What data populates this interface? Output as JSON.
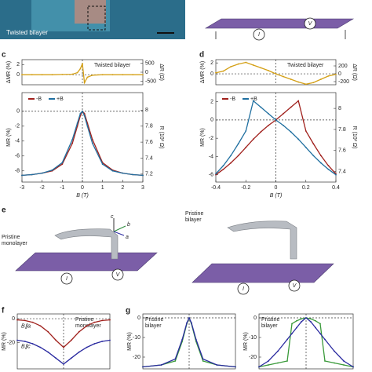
{
  "panel_labels": {
    "c": "c",
    "d": "d",
    "e": "e",
    "f": "f",
    "g": "g"
  },
  "schematics": {
    "image_label": "Twisted bilayer",
    "current": "I",
    "voltage": "V",
    "axis_a": "a",
    "axis_b": "b",
    "axis_c": "c",
    "monolayer": "Pristine\nmonolayer",
    "bilayer": "Pristine\nbilayer"
  },
  "chart_data": [
    {
      "type": "line",
      "title": "Twisted bilayer",
      "ylabel": "ΔMR (%)",
      "y2label": "ΔR (Ω)",
      "x": [
        -3,
        -2.5,
        -2,
        -1.5,
        -1,
        -0.5,
        -0.25,
        -0.1,
        0,
        0.1,
        0.25,
        0.5,
        1,
        1.5,
        2,
        2.5,
        3
      ],
      "xlim": [
        -3,
        3
      ],
      "ylim": [
        -2,
        3
      ],
      "yticks": [
        0,
        2
      ],
      "y2lim": [
        -700,
        700
      ],
      "y2ticks": [
        500,
        0,
        -500
      ],
      "series": [
        {
          "name": "ΔMR",
          "color": "#d4a017",
          "values": [
            0,
            0,
            0,
            0,
            0.05,
            0.1,
            0.4,
            1.2,
            2.2,
            -1.6,
            -0.5,
            -0.1,
            0,
            0,
            0,
            0,
            0
          ]
        }
      ]
    },
    {
      "type": "line",
      "xlabel": "B (T)",
      "ylabel": "MR (%)",
      "y2label": "R (10² Ω)",
      "x": [
        -3,
        -2.5,
        -2,
        -1.5,
        -1,
        -0.5,
        -0.25,
        -0.1,
        0,
        0.1,
        0.25,
        0.5,
        1,
        1.5,
        2,
        2.5,
        3
      ],
      "xlim": [
        -3,
        3
      ],
      "xticks": [
        -3,
        -2,
        -1,
        0,
        1,
        2,
        3
      ],
      "ylim": [
        -9.5,
        2.5
      ],
      "yticks": [
        0,
        -2,
        -4,
        -6,
        -8
      ],
      "y2lim": [
        7.1,
        8.22
      ],
      "y2ticks": [
        8.0,
        7.8,
        7.6,
        7.4,
        7.2
      ],
      "legend": "top-left",
      "series": [
        {
          "name": "-B",
          "color": "#a0201c",
          "values": [
            -8.6,
            -8.5,
            -8.3,
            -8.0,
            -7.1,
            -4.3,
            -2.0,
            -0.6,
            0,
            -0.3,
            -1.6,
            -3.8,
            -6.9,
            -7.9,
            -8.3,
            -8.5,
            -8.6
          ]
        },
        {
          "name": "+B",
          "color": "#1f6fa0",
          "values": [
            -8.6,
            -8.5,
            -8.3,
            -7.9,
            -6.9,
            -3.8,
            -1.6,
            -0.3,
            0,
            -0.6,
            -2.0,
            -4.3,
            -7.1,
            -8.0,
            -8.3,
            -8.5,
            -8.6
          ]
        }
      ]
    },
    {
      "type": "line",
      "title": "Twisted bilayer",
      "ylabel": "ΔMR (%)",
      "y2label": "ΔR (Ω)",
      "x": [
        -0.4,
        -0.35,
        -0.3,
        -0.25,
        -0.2,
        -0.15,
        -0.1,
        -0.05,
        0,
        0.05,
        0.1,
        0.15,
        0.2,
        0.25,
        0.3,
        0.35,
        0.4
      ],
      "xlim": [
        -0.4,
        0.4
      ],
      "ylim": [
        -2,
        2.6
      ],
      "yticks": [
        0,
        2
      ],
      "y2lim": [
        -280,
        360
      ],
      "y2ticks": [
        200,
        0,
        -200
      ],
      "series": [
        {
          "name": "ΔMR",
          "color": "#d4a017",
          "values": [
            0.2,
            0.5,
            1.3,
            1.8,
            2.1,
            1.6,
            1.1,
            0.6,
            0,
            -0.5,
            -1.0,
            -1.5,
            -1.9,
            -1.6,
            -1.0,
            -0.4,
            -0.1
          ]
        }
      ]
    },
    {
      "type": "line",
      "xlabel": "B (T)",
      "ylabel": "MR (%)",
      "y2label": "R (10² Ω)",
      "x": [
        -0.4,
        -0.35,
        -0.3,
        -0.25,
        -0.2,
        -0.15,
        -0.1,
        -0.05,
        0,
        0.05,
        0.1,
        0.15,
        0.2,
        0.25,
        0.3,
        0.35,
        0.4
      ],
      "xlim": [
        -0.4,
        0.4
      ],
      "xticks": [
        -0.4,
        -0.2,
        0,
        0.2,
        0.4
      ],
      "ylim": [
        -6.8,
        3
      ],
      "yticks": [
        2,
        0,
        -2,
        -4,
        -6
      ],
      "y2lim": [
        7.3,
        8.15
      ],
      "y2ticks": [
        8.0,
        7.8,
        7.6,
        7.4
      ],
      "legend": "top-left",
      "series": [
        {
          "name": "-B",
          "color": "#a0201c",
          "values": [
            -6.0,
            -5.4,
            -4.7,
            -3.9,
            -3.0,
            -2.1,
            -1.3,
            -0.6,
            0,
            0.7,
            1.4,
            2.1,
            -1.2,
            -2.6,
            -3.9,
            -5.0,
            -5.9
          ]
        },
        {
          "name": "+B",
          "color": "#1f6fa0",
          "values": [
            -5.9,
            -5.0,
            -3.9,
            -2.6,
            -1.2,
            2.1,
            1.4,
            0.7,
            0,
            -0.6,
            -1.3,
            -2.1,
            -3.0,
            -3.9,
            -4.7,
            -5.4,
            -6.0
          ]
        }
      ]
    },
    {
      "type": "line",
      "title": "Pristine\nmonolayer",
      "ylabel": "MR (%)",
      "x": [
        -9,
        -7.5,
        -6,
        -4.5,
        -3,
        -1.5,
        0,
        1.5,
        3,
        4.5,
        6,
        7.5,
        9
      ],
      "xlim": [
        -9,
        9
      ],
      "ylim": [
        -42,
        4
      ],
      "yticks": [
        0,
        -20
      ],
      "legend": "left",
      "series": [
        {
          "name": "B∥a",
          "color": "#a0201c",
          "values": [
            -1,
            -1.5,
            -3,
            -6,
            -11,
            -18,
            -24,
            -18,
            -11,
            -6,
            -3,
            -1.5,
            -1
          ]
        },
        {
          "name": "B∥c",
          "color": "#2a2aa0",
          "values": [
            -18,
            -19,
            -21,
            -24,
            -28,
            -33,
            -38,
            -33,
            -28,
            -24,
            -21,
            -19,
            -18
          ]
        }
      ]
    },
    {
      "type": "line",
      "title": "Pristine\nbilayer",
      "ylabel": "MR (%)",
      "x": [
        -1,
        -0.6,
        -0.3,
        -0.15,
        -0.05,
        0,
        0.05,
        0.15,
        0.3,
        0.6,
        1
      ],
      "xlim": [
        -1,
        1
      ],
      "ylim": [
        -26,
        2
      ],
      "yticks": [
        0,
        -10,
        -20
      ],
      "series": [
        {
          "name": "green",
          "color": "#3a9a3a",
          "values": [
            -25,
            -24,
            -22,
            -12,
            -3,
            0,
            -3,
            -12,
            -22,
            -24,
            -25
          ]
        },
        {
          "name": "blue",
          "color": "#2a2aa0",
          "values": [
            -25,
            -24,
            -21,
            -11,
            -2.5,
            0,
            -2.5,
            -11,
            -21,
            -24,
            -25
          ]
        }
      ]
    },
    {
      "type": "line",
      "title": "Pristine\nbilayer",
      "ylabel": "MR (%)",
      "x": [
        -1,
        -0.8,
        -0.6,
        -0.4,
        -0.3,
        -0.2,
        -0.1,
        0,
        0.1,
        0.2,
        0.3,
        0.4,
        0.6,
        0.8,
        1
      ],
      "xlim": [
        -1,
        1
      ],
      "ylim": [
        -26,
        2
      ],
      "yticks": [
        0,
        -10,
        -20
      ],
      "series": [
        {
          "name": "green",
          "color": "#3a9a3a",
          "values": [
            -25,
            -24,
            -23,
            -22,
            -3,
            -1.5,
            -0.5,
            0,
            -0.5,
            -1.5,
            -3,
            -22,
            -23,
            -24,
            -25
          ]
        },
        {
          "name": "blue",
          "color": "#2a2aa0",
          "values": [
            -25,
            -22,
            -17,
            -11,
            -8,
            -5,
            -2,
            0,
            -2,
            -5,
            -8,
            -11,
            -17,
            -22,
            -25
          ]
        }
      ]
    }
  ]
}
